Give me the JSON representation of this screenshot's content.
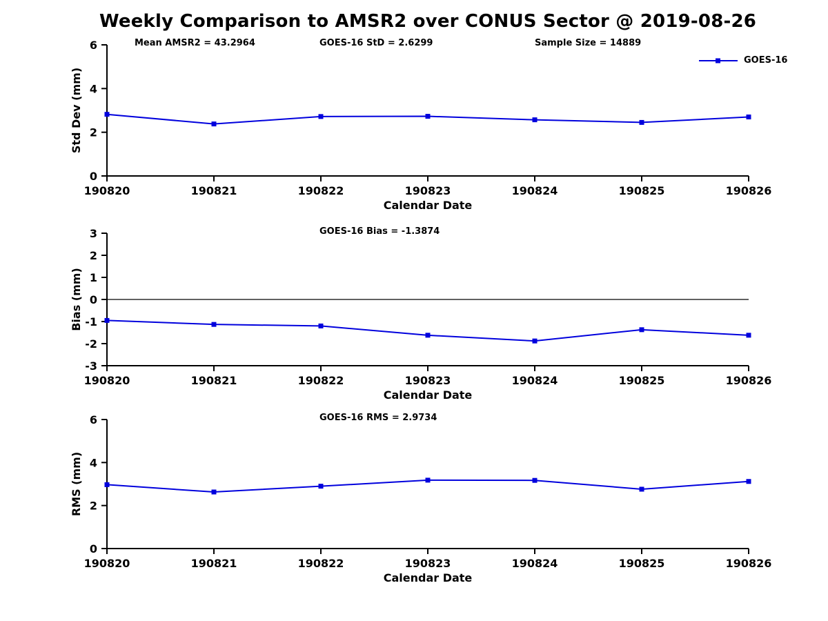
{
  "title": "Weekly Comparison to AMSR2 over CONUS Sector @ 2019-08-26",
  "accent_color": "#0000dd",
  "legend": {
    "label": "GOES-16"
  },
  "chart_data": [
    {
      "type": "line",
      "name": "std-dev-subplot",
      "annotations": [
        "Mean AMSR2 = 43.2964",
        "GOES-16 StD = 2.6299",
        "Sample Size = 14889"
      ],
      "categories": [
        "190820",
        "190821",
        "190822",
        "190823",
        "190824",
        "190825",
        "190826"
      ],
      "series": [
        {
          "name": "GOES-16",
          "values": [
            2.82,
            2.38,
            2.72,
            2.73,
            2.57,
            2.45,
            2.7
          ]
        }
      ],
      "xlabel": "Calendar Date",
      "ylabel": "Std Dev (mm)",
      "ylim": [
        0,
        6
      ],
      "yticks": [
        0,
        2,
        4,
        6
      ],
      "zero_line": false,
      "legend_position": "top-right"
    },
    {
      "type": "line",
      "name": "bias-subplot",
      "annotations": [
        "GOES-16 Bias  = -1.3874"
      ],
      "categories": [
        "190820",
        "190821",
        "190822",
        "190823",
        "190824",
        "190825",
        "190826"
      ],
      "series": [
        {
          "name": "GOES-16",
          "values": [
            -0.95,
            -1.13,
            -1.2,
            -1.62,
            -1.88,
            -1.37,
            -1.62
          ]
        }
      ],
      "xlabel": "Calendar Date",
      "ylabel": "Bias (mm)",
      "ylim": [
        -3,
        3
      ],
      "yticks": [
        -3,
        -2,
        -1,
        0,
        1,
        2,
        3
      ],
      "zero_line": true
    },
    {
      "type": "line",
      "name": "rms-subplot",
      "annotations": [
        "GOES-16 RMS = 2.9734"
      ],
      "categories": [
        "190820",
        "190821",
        "190822",
        "190823",
        "190824",
        "190825",
        "190826"
      ],
      "series": [
        {
          "name": "GOES-16",
          "values": [
            2.97,
            2.63,
            2.9,
            3.18,
            3.17,
            2.76,
            3.12
          ]
        }
      ],
      "xlabel": "Calendar Date",
      "ylabel": "RMS (mm)",
      "ylim": [
        0,
        6
      ],
      "yticks": [
        0,
        2,
        4,
        6
      ],
      "zero_line": false
    }
  ]
}
